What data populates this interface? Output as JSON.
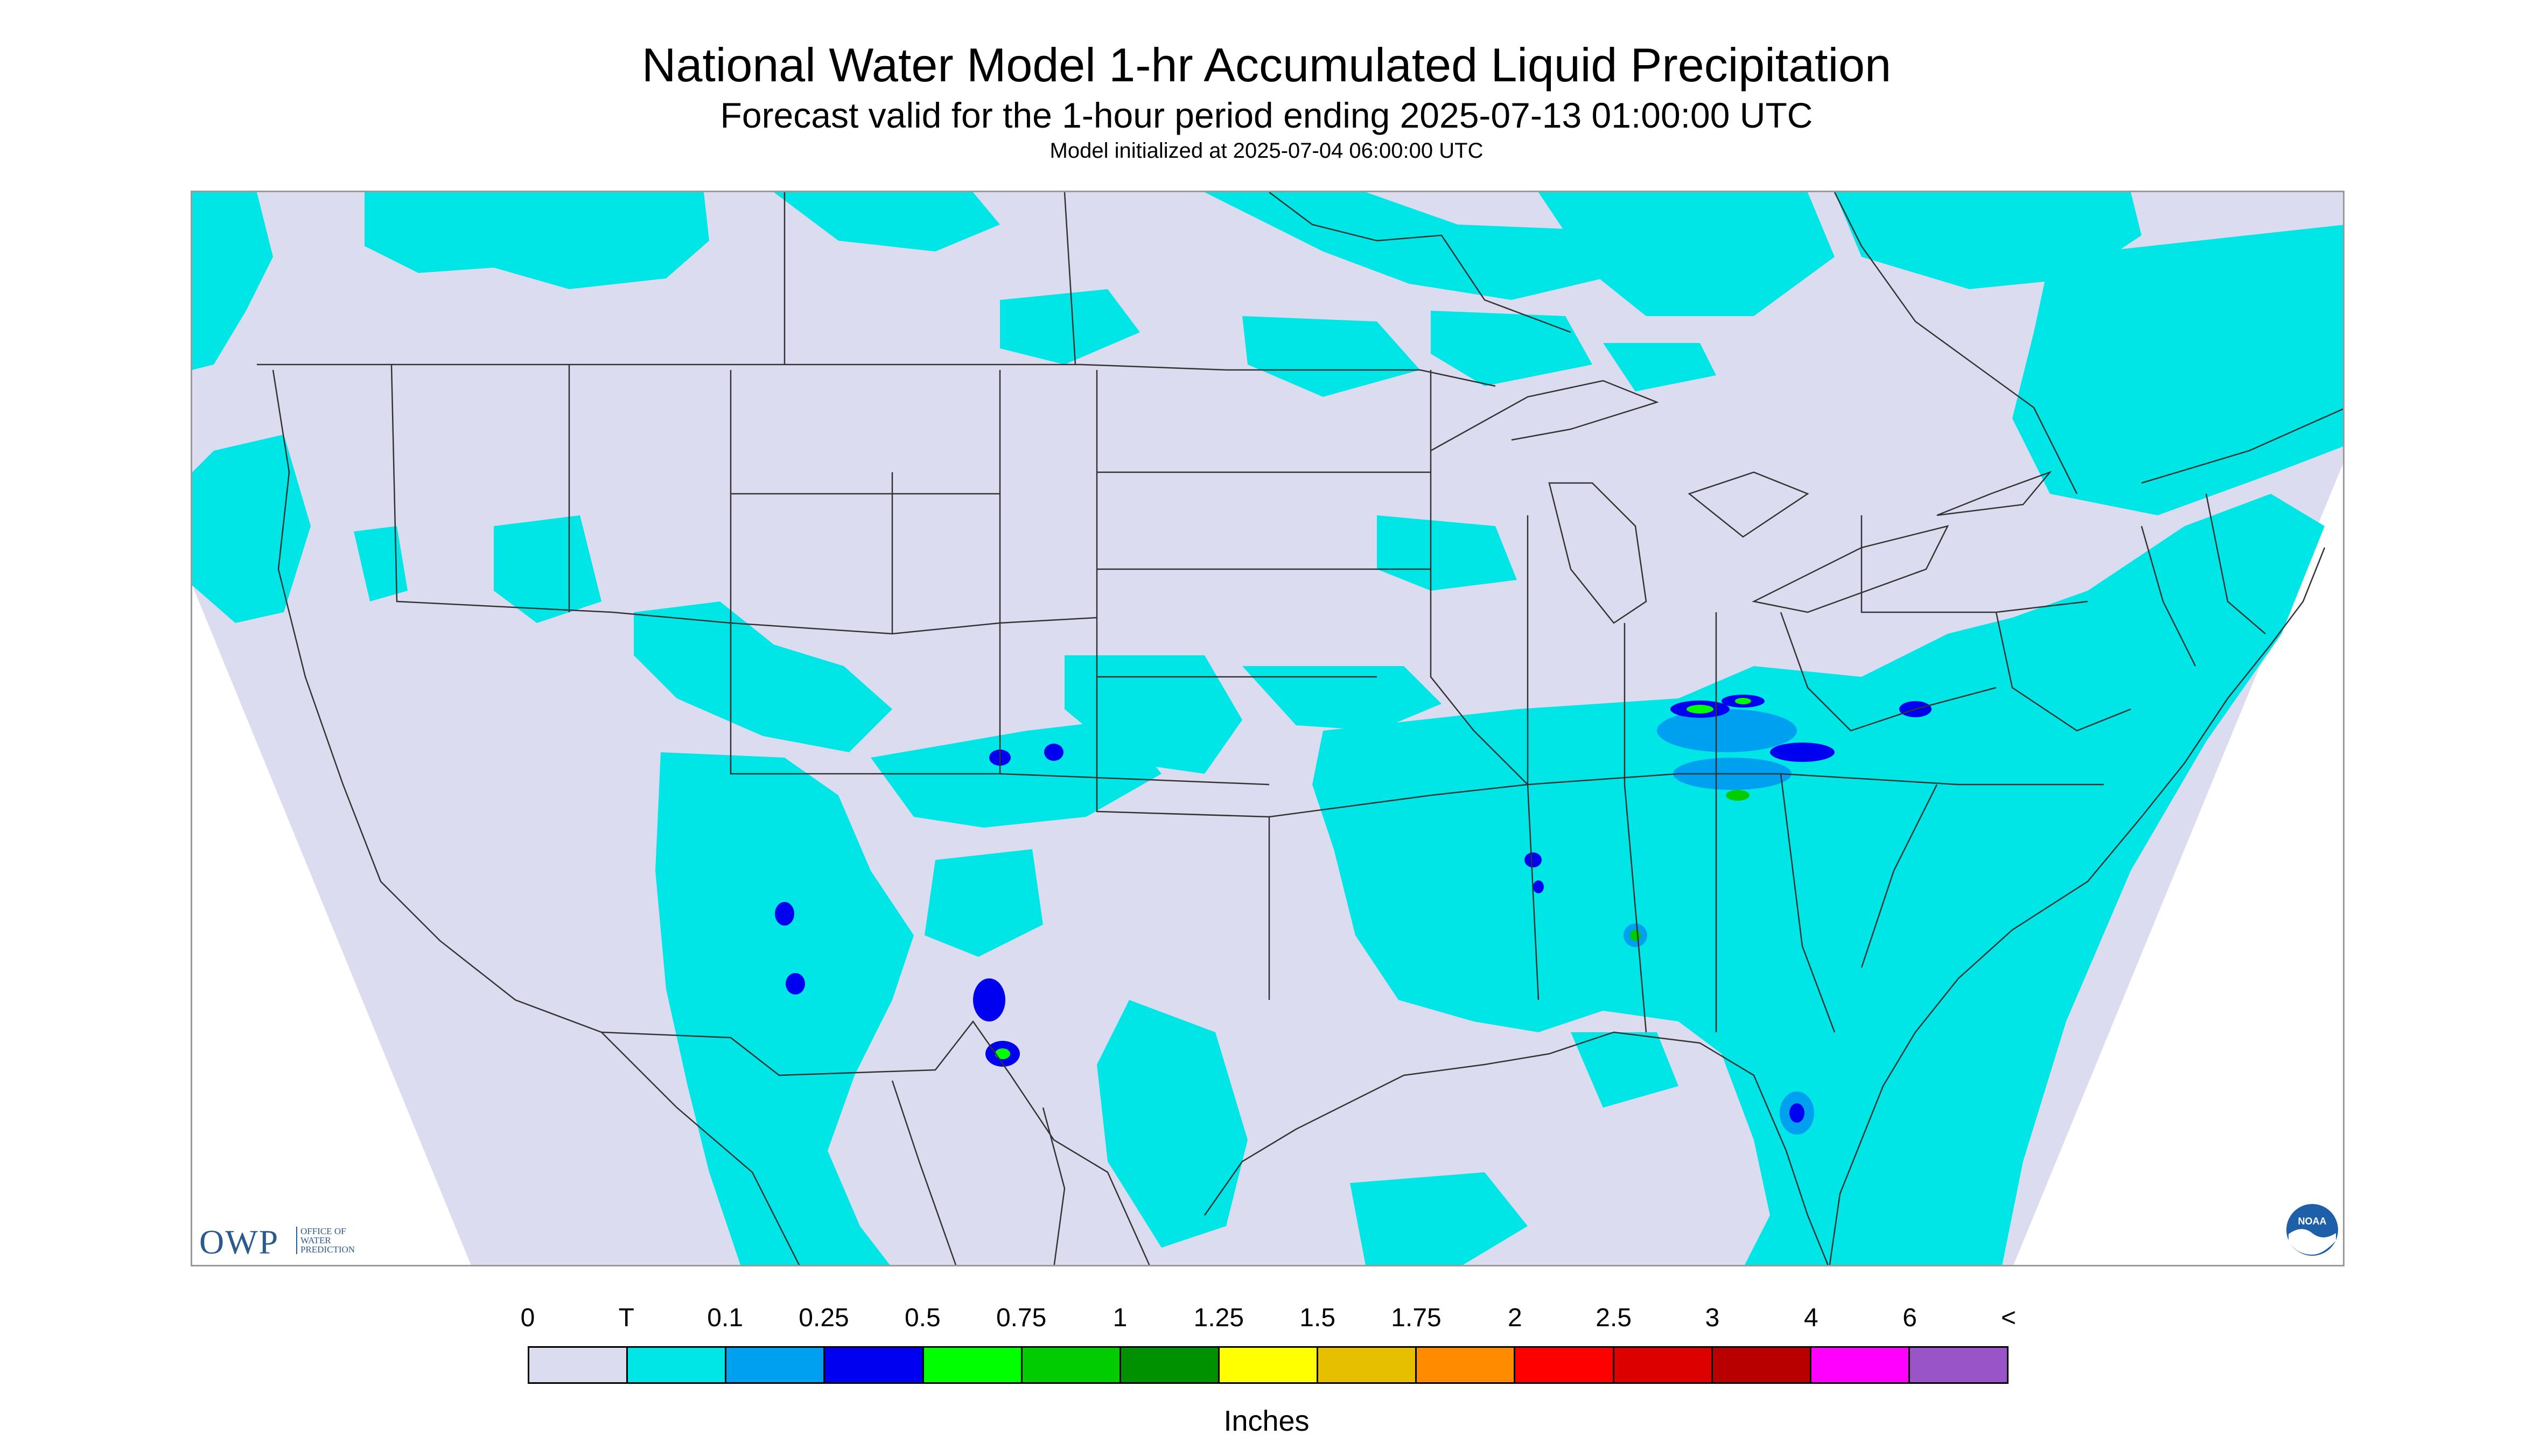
{
  "header": {
    "title": "National Water Model 1-hr Accumulated Liquid Precipitation",
    "subtitle": "Forecast valid for the 1-hour period ending 2025-07-13 01:00:00 UTC",
    "init_line": "Model initialized at 2025-07-04 06:00:00 UTC"
  },
  "map": {
    "projection_shape": "lambert-conic-trapezoid",
    "no_data_color": "#dcdcf0",
    "outside_color": "#ffffff",
    "boundary_color": "#333333",
    "trace_color": "#00e6e6",
    "icon_boundaries": "state-boundaries-icon",
    "icon_coast": "coastline-icon"
  },
  "logos": {
    "owp_text": "OWP",
    "owp_sub": [
      "OFFICE OF",
      "WATER",
      "PREDICTION"
    ],
    "noaa_icon": "noaa-logo-icon",
    "noaa_text": "NOAA"
  },
  "legend": {
    "units": "Inches",
    "ticks": [
      "0",
      "T",
      "0.1",
      "0.25",
      "0.5",
      "0.75",
      "1",
      "1.25",
      "1.5",
      "1.75",
      "2",
      "2.5",
      "3",
      "4",
      "6",
      "<"
    ],
    "colors": [
      "#dcdcf0",
      "#00e6e6",
      "#00a0f0",
      "#0000f0",
      "#00ff00",
      "#00cc00",
      "#009100",
      "#ffff00",
      "#e6c000",
      "#ff8c00",
      "#ff0000",
      "#dc0000",
      "#b90000",
      "#ff00ff",
      "#9955c8"
    ]
  }
}
